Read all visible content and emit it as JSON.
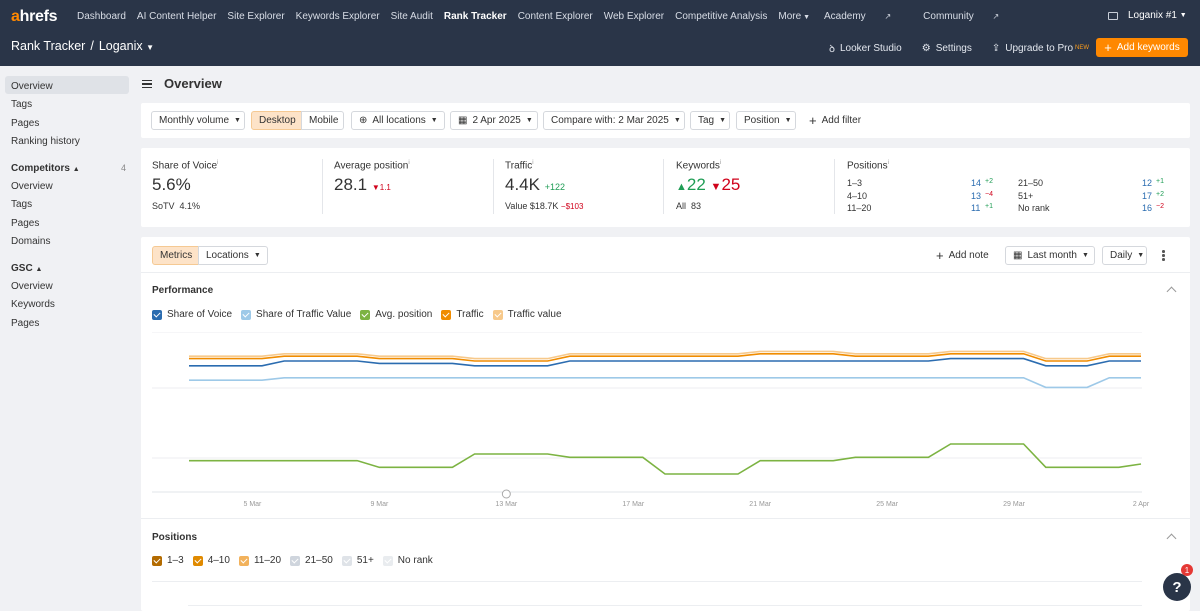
{
  "nav": {
    "logo_a": "a",
    "logo_rest": "hrefs",
    "items": [
      "Dashboard",
      "AI Content Helper",
      "Site Explorer",
      "Keywords Explorer",
      "Site Audit",
      "Rank Tracker",
      "Content Explorer",
      "Web Explorer",
      "Competitive Analysis",
      "More"
    ],
    "active_index": 5,
    "academy": "Academy",
    "community": "Community",
    "account": "Loganix #1"
  },
  "subnav": {
    "tool": "Rank Tracker",
    "separator": "/",
    "project": "Loganix",
    "looker": "Looker Studio",
    "settings": "Settings",
    "upgrade": "Upgrade to Pro",
    "new_badge": "NEW",
    "add_keywords": "Add keywords"
  },
  "sidebar": {
    "top": [
      "Overview",
      "Tags",
      "Pages",
      "Ranking history"
    ],
    "competitors_label": "Competitors",
    "competitors_count": "4",
    "competitors": [
      "Overview",
      "Tags",
      "Pages",
      "Domains"
    ],
    "gsc_label": "GSC",
    "gsc": [
      "Overview",
      "Keywords",
      "Pages"
    ]
  },
  "page": {
    "title": "Overview"
  },
  "filters": {
    "volume": "Monthly volume",
    "desktop": "Desktop",
    "mobile": "Mobile",
    "locations": "All locations",
    "date": "2 Apr 2025",
    "compare": "Compare with: 2 Mar 2025",
    "tag": "Tag",
    "position": "Position",
    "add_filter": "Add filter"
  },
  "stats": {
    "sov": {
      "label": "Share of Voice",
      "value": "5.6%",
      "sub_label": "SoTV",
      "sub_value": "4.1%"
    },
    "avg": {
      "label": "Average position",
      "value": "28.1",
      "delta": "1.1"
    },
    "traffic": {
      "label": "Traffic",
      "value": "4.4K",
      "delta": "+122",
      "sub_label": "Value",
      "sub_value": "$18.7K",
      "sub_delta": "−$103"
    },
    "keywords": {
      "label": "Keywords",
      "up": "22",
      "down": "25",
      "all_label": "All",
      "all_value": "83"
    },
    "positions": {
      "label": "Positions",
      "rows": [
        {
          "name": "1–3",
          "value": "14",
          "delta": "+2"
        },
        {
          "name": "4–10",
          "value": "13",
          "delta": "−4"
        },
        {
          "name": "11–20",
          "value": "11",
          "delta": "+1"
        },
        {
          "name": "21–50",
          "value": "12",
          "delta": "+1"
        },
        {
          "name": "51+",
          "value": "17",
          "delta": "+2"
        },
        {
          "name": "No rank",
          "value": "16",
          "delta": "−2"
        }
      ]
    }
  },
  "chart_toolbar": {
    "metrics": "Metrics",
    "locations": "Locations",
    "add_note": "Add note",
    "range": "Last month",
    "interval": "Daily"
  },
  "performance": {
    "title": "Performance",
    "legend": [
      {
        "label": "Share of Voice",
        "color": "#2b6cb0"
      },
      {
        "label": "Share of Traffic Value",
        "color": "#9ec9e8"
      },
      {
        "label": "Avg. position",
        "color": "#7cb342"
      },
      {
        "label": "Traffic",
        "color": "#f08c00"
      },
      {
        "label": "Traffic value",
        "color": "#f7c98b"
      }
    ]
  },
  "positions_section": {
    "title": "Positions",
    "legend": [
      {
        "label": "1–3",
        "color": "#b36b00"
      },
      {
        "label": "4–10",
        "color": "#e08a00"
      },
      {
        "label": "11–20",
        "color": "#f2b25c"
      },
      {
        "label": "21–50",
        "color": "#cfd5dd"
      },
      {
        "label": "51+",
        "color": "#dfe3e8"
      },
      {
        "label": "No rank",
        "color": "#e9ecef"
      }
    ]
  },
  "chart_data": {
    "type": "line",
    "x": [
      "3 Mar",
      "4 Mar",
      "5 Mar",
      "6 Mar",
      "7 Mar",
      "8 Mar",
      "9 Mar",
      "10 Mar",
      "11 Mar",
      "12 Mar",
      "13 Mar",
      "14 Mar",
      "15 Mar",
      "16 Mar",
      "17 Mar",
      "18 Mar",
      "19 Mar",
      "20 Mar",
      "21 Mar",
      "22 Mar",
      "23 Mar",
      "24 Mar",
      "25 Mar",
      "26 Mar",
      "27 Mar",
      "28 Mar",
      "29 Mar",
      "30 Mar",
      "31 Mar",
      "1 Apr",
      "2 Apr"
    ],
    "x_tick_labels": [
      "5 Mar",
      "9 Mar",
      "13 Mar",
      "17 Mar",
      "21 Mar",
      "25 Mar",
      "29 Mar",
      "2 Apr"
    ],
    "series": [
      {
        "name": "Traffic",
        "values": [
          61,
          61,
          61,
          62,
          62,
          62,
          61,
          61,
          61,
          60,
          60,
          60,
          62,
          62,
          62,
          62,
          62,
          62,
          63,
          63,
          63,
          62,
          62,
          62,
          63,
          63,
          63,
          60,
          60,
          62,
          62
        ]
      },
      {
        "name": "Traffic value",
        "values": [
          62,
          62,
          62,
          63,
          63,
          63,
          62,
          62,
          62,
          61,
          61,
          61,
          63,
          63,
          63,
          63,
          63,
          63,
          64,
          64,
          64,
          63,
          63,
          63,
          64,
          64,
          64,
          61,
          61,
          63,
          63
        ]
      },
      {
        "name": "Share of Voice",
        "values": [
          58,
          58,
          58,
          60,
          60,
          60,
          59,
          59,
          59,
          58,
          58,
          58,
          60,
          60,
          60,
          60,
          60,
          60,
          60,
          60,
          60,
          60,
          60,
          60,
          61,
          61,
          61,
          58,
          58,
          60,
          60
        ]
      },
      {
        "name": "Share of Traffic Value",
        "values": [
          52,
          52,
          52,
          53,
          53,
          53,
          53,
          53,
          53,
          53,
          53,
          53,
          53,
          53,
          53,
          53,
          53,
          53,
          53,
          53,
          53,
          53,
          53,
          53,
          53,
          53,
          53,
          49,
          49,
          53,
          53
        ]
      },
      {
        "name": "Avg. position",
        "values": [
          28,
          28,
          28,
          28,
          28,
          28,
          30,
          30,
          30,
          26,
          26,
          26,
          27,
          27,
          27,
          32,
          32,
          32,
          28,
          28,
          28,
          27,
          27,
          27,
          23,
          23,
          23,
          30,
          30,
          30,
          29
        ]
      }
    ],
    "xlabel": "",
    "ylabel": ""
  }
}
